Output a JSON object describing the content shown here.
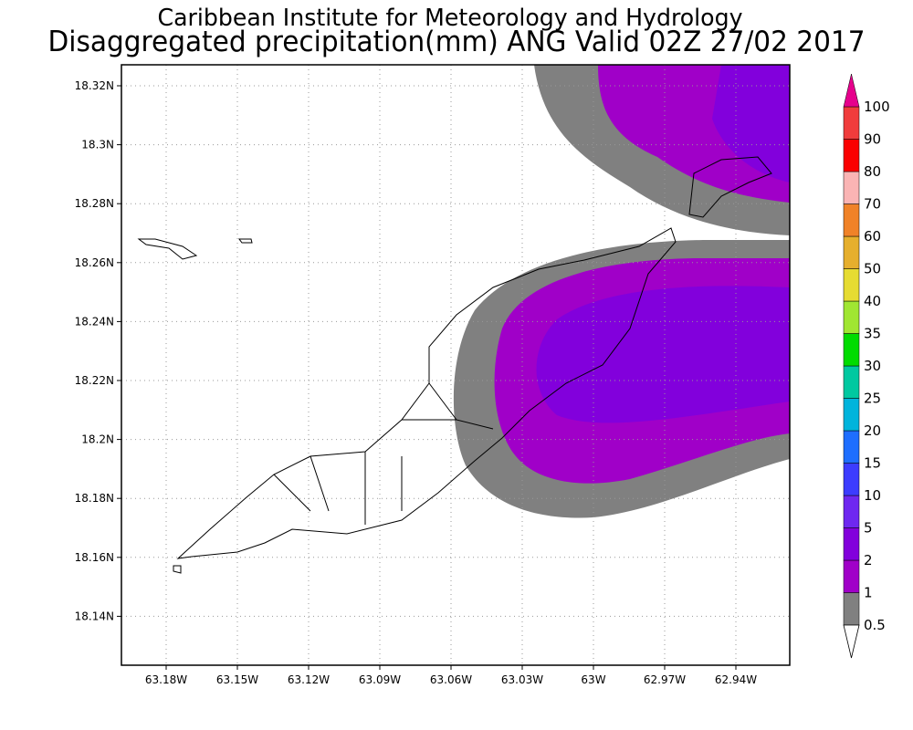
{
  "header": {
    "title": "Caribbean Institute for Meteorology and Hydrology",
    "subtitle": "Disaggregated precipitation(mm) ANG Valid 02Z 27/02 2017"
  },
  "map": {
    "lat_labels": [
      "18.32N",
      "18.3N",
      "18.28N",
      "18.26N",
      "18.24N",
      "18.22N",
      "18.2N",
      "18.18N",
      "18.16N",
      "18.14N"
    ],
    "lon_labels": [
      "63.18W",
      "63.15W",
      "63.12W",
      "63.09W",
      "63.06W",
      "63.03W",
      "63W",
      "62.97W",
      "62.94W"
    ]
  },
  "colorbar": {
    "labels": [
      "0.5",
      "1",
      "2",
      "5",
      "10",
      "15",
      "20",
      "25",
      "30",
      "35",
      "40",
      "50",
      "60",
      "70",
      "80",
      "90",
      "100"
    ]
  }
}
